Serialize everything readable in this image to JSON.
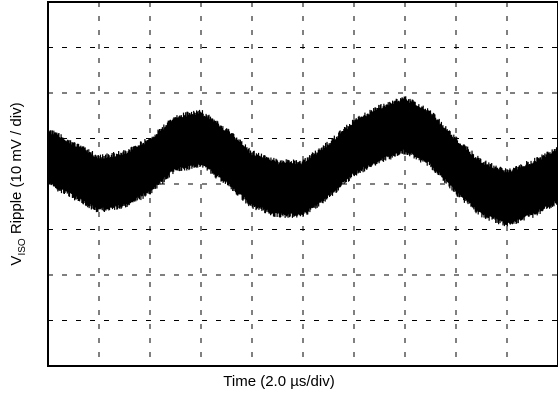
{
  "chart_data": {
    "type": "line",
    "xlabel": "Time (2.0 µs/div)",
    "ylabel_main": "V",
    "ylabel_sub": "ISO",
    "ylabel_rest": " Ripple (10 mV / div)",
    "x_unit": "µs",
    "y_unit": "mV",
    "xlim": [
      0,
      20
    ],
    "ylim": [
      -40,
      40
    ],
    "x_divisions": 10,
    "y_divisions": 8,
    "grid": true,
    "series": [
      {
        "color": "#000000",
        "envelope_center": {
          "x": [
            0,
            1,
            2,
            3,
            4,
            5,
            6,
            7,
            8,
            9,
            10,
            11,
            12,
            13,
            14,
            15,
            16,
            17,
            18,
            19,
            20
          ],
          "y": [
            6,
            3,
            0,
            1,
            4,
            9,
            10,
            6,
            1,
            -1,
            -1,
            3,
            8,
            11,
            13,
            10,
            4,
            -1,
            -3,
            -1,
            2
          ]
        },
        "ripple_peak_to_peak": 13
      }
    ]
  }
}
